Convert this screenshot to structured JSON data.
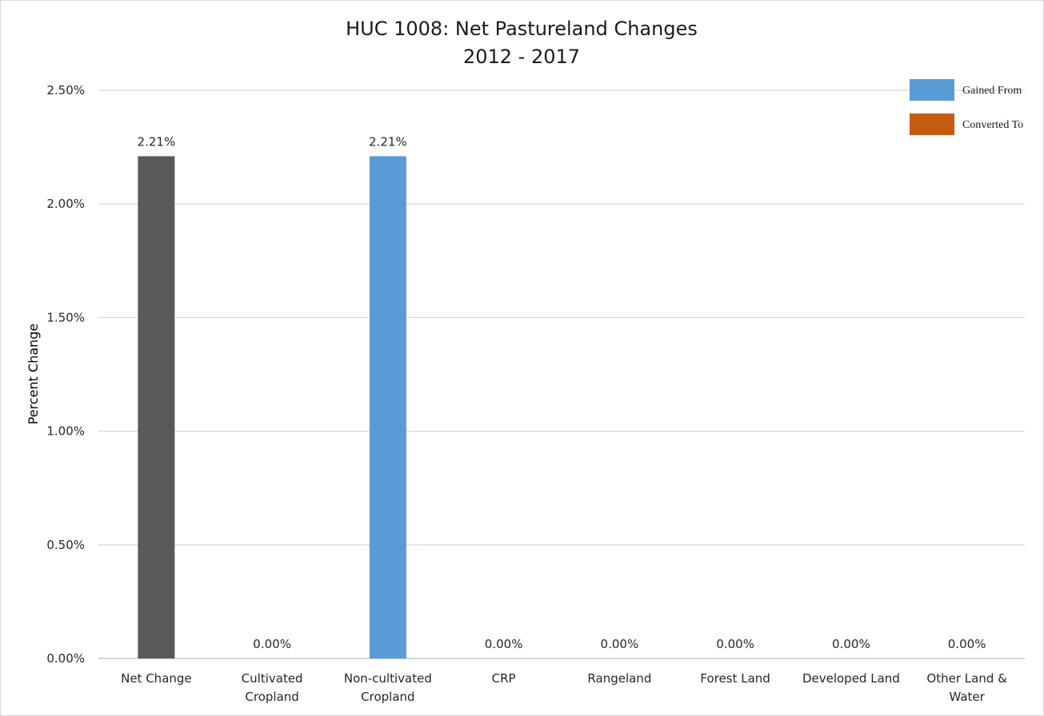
{
  "chart_data": {
    "type": "bar",
    "title_lines": [
      "HUC 1008: Net Pastureland Changes",
      "2012 - 2017"
    ],
    "xlabel": "",
    "ylabel": "Percent Change",
    "ylim": [
      0,
      2.5
    ],
    "y_ticks": [
      "0.00%",
      "0.50%",
      "1.00%",
      "1.50%",
      "2.00%",
      "2.50%"
    ],
    "y_tick_values": [
      0,
      0.5,
      1.0,
      1.5,
      2.0,
      2.5
    ],
    "grid": true,
    "categories": [
      [
        "Net Change"
      ],
      [
        "Cultivated",
        "Cropland"
      ],
      [
        "Non-cultivated",
        "Cropland"
      ],
      [
        "CRP"
      ],
      [
        "Rangeland"
      ],
      [
        "Forest Land"
      ],
      [
        "Developed Land"
      ],
      [
        "Other Land &",
        "Water"
      ]
    ],
    "values": [
      2.21,
      0.0,
      2.21,
      0.0,
      0.0,
      0.0,
      0.0,
      0.0
    ],
    "data_labels": [
      "2.21%",
      "0.00%",
      "2.21%",
      "0.00%",
      "0.00%",
      "0.00%",
      "0.00%",
      "0.00%"
    ],
    "bar_kinds": [
      "net",
      "gained",
      "gained",
      "gained",
      "gained",
      "gained",
      "gained",
      "gained"
    ],
    "legend": {
      "position": "top-right",
      "entries": [
        {
          "label": "Gained From",
          "color": "#5b9bd5"
        },
        {
          "label": "Converted To",
          "color": "#c55a11"
        }
      ]
    },
    "colors": {
      "net": "#595959",
      "gained": "#5b9bd5",
      "converted": "#c55a11",
      "grid": "#d9d9d9"
    }
  }
}
